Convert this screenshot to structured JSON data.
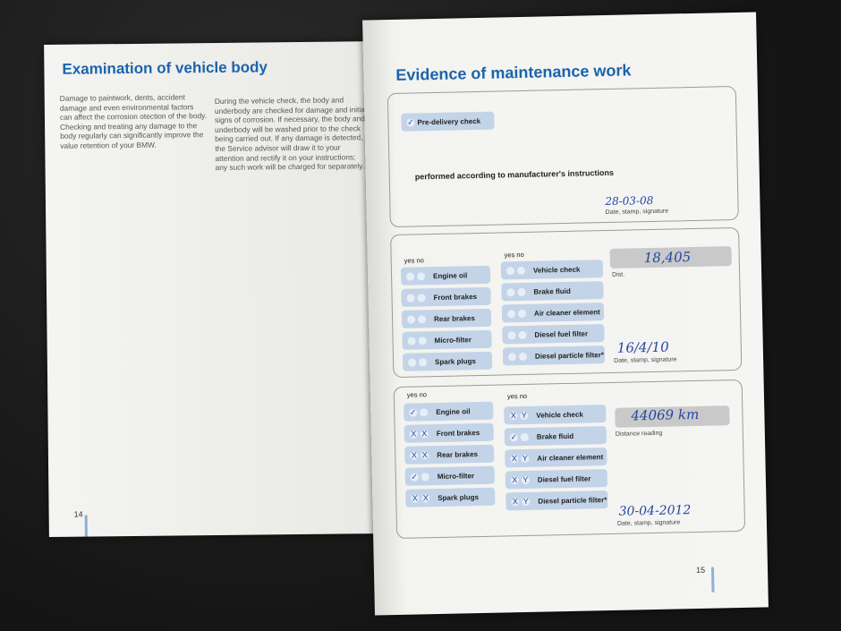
{
  "left_page": {
    "title": "Examination of vehicle body",
    "col1": "Damage to paintwork, dents, accident damage and even environmental factors can affect the corrosion   otection of the body. Checking and treating any damage to the body regularly can significantly improve the value retention of your BMW.",
    "col2": "During the vehicle check, the body and underbody are checked for damage and initial signs of corrosion. If necessary, the body and underbody will be washed prior to the check being carried out. If any damage is detected, the Service advisor will draw it to your attention and rectify it on your instructions; any such work will be charged for separately.",
    "page_number": "14"
  },
  "right_page": {
    "title": "Evidence of maintenance work",
    "page_number": "15",
    "entry1": {
      "item": "Pre-delivery check",
      "performed": "performed according to manufacturer's instructions",
      "date": "28-03-08",
      "date_label": "Date, stamp, signature"
    },
    "yes_no": "yes no",
    "items_left": [
      "Engine oil",
      "Front brakes",
      "Rear brakes",
      "Micro-filter",
      "Spark plugs"
    ],
    "items_right": [
      "Vehicle check",
      "Brake fluid",
      "Air cleaner element",
      "Diesel fuel filter",
      "Diesel particle filter*"
    ],
    "entry2": {
      "distance": "18,405",
      "distance_label": "Dist.",
      "date": "16/4/10",
      "date_label": "Date, stamp, signature"
    },
    "entry3": {
      "distance": "44069 km",
      "distance_label": "Distance reading",
      "date": "30-04-2012",
      "date_label": "Date, stamp, signature",
      "marks_left": [
        [
          "✓",
          ""
        ],
        [
          "X",
          "X"
        ],
        [
          "X",
          "X"
        ],
        [
          "✓",
          ""
        ],
        [
          "X",
          "X"
        ]
      ],
      "marks_right": [
        [
          "X",
          "Y"
        ],
        [
          "✓",
          ""
        ],
        [
          "X",
          "Y"
        ],
        [
          "X",
          "Y"
        ],
        [
          "X",
          "Y"
        ]
      ]
    }
  }
}
